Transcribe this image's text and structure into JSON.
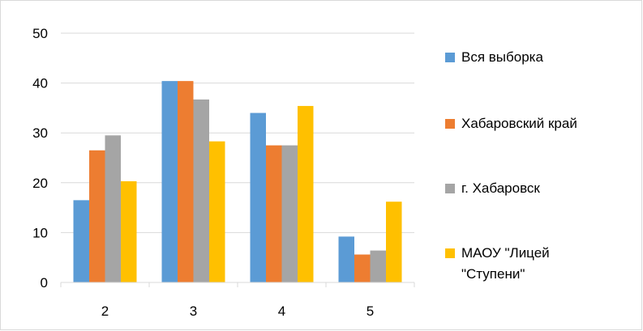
{
  "chart_data": {
    "type": "bar",
    "categories": [
      "2",
      "3",
      "4",
      "5"
    ],
    "series": [
      {
        "name": "Вся выборка",
        "color": "#5B9BD5",
        "values": [
          16.5,
          40.4,
          34.0,
          9.2
        ]
      },
      {
        "name": "Хабаровский край",
        "color": "#ED7D31",
        "values": [
          26.5,
          40.4,
          27.5,
          5.6
        ]
      },
      {
        "name": "г. Хабаровск",
        "color": "#A5A5A5",
        "values": [
          29.5,
          36.7,
          27.5,
          6.4
        ]
      },
      {
        "name": "МАОУ \"Лицей \"Ступени\"",
        "color": "#FFC000",
        "values": [
          20.3,
          28.3,
          35.4,
          16.2
        ]
      }
    ],
    "y_ticks": [
      "0",
      "10",
      "20",
      "30",
      "40",
      "50"
    ],
    "ylim": [
      0,
      50
    ],
    "grid": true,
    "legend": "right"
  }
}
